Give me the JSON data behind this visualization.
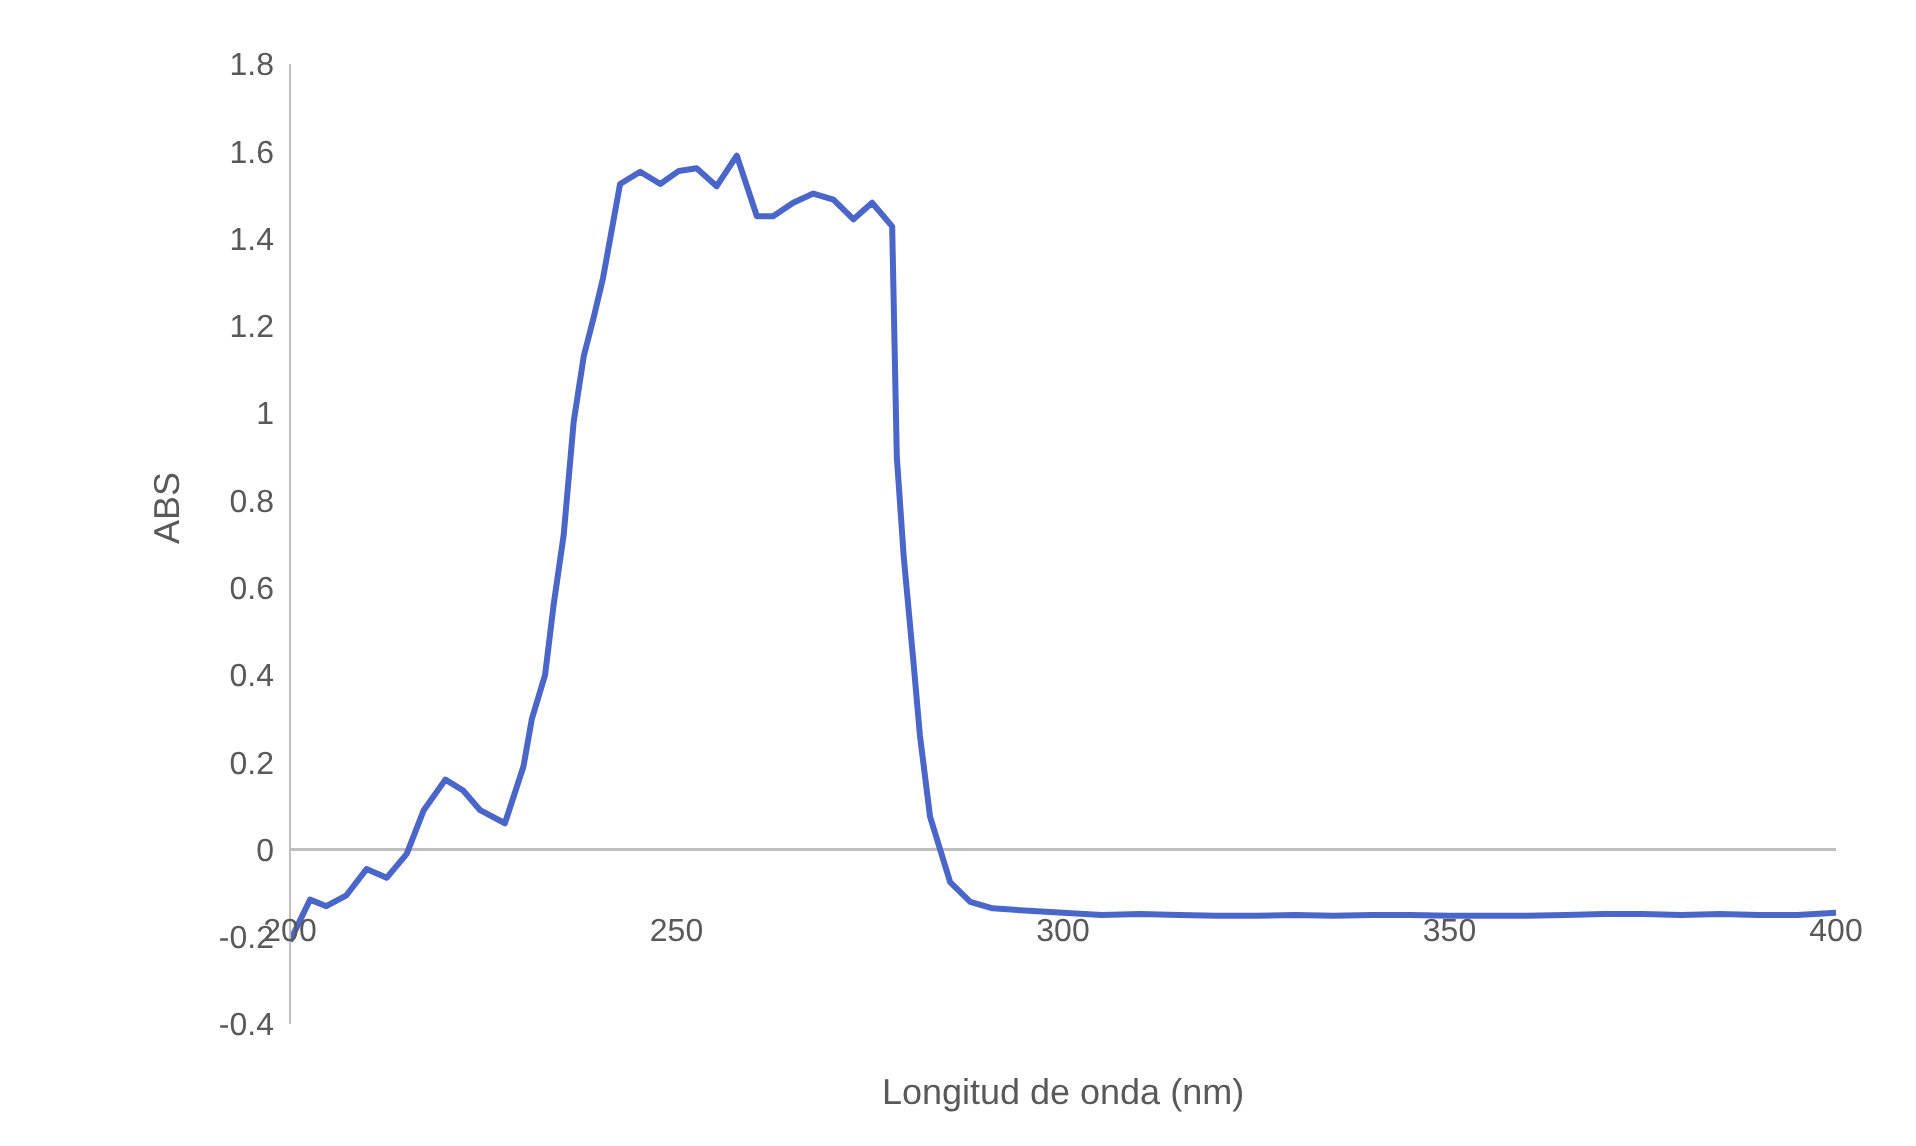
{
  "chart_data": {
    "type": "line",
    "xlabel": "Longitud de onda (nm)",
    "ylabel": "ABS",
    "xlim": [
      200,
      400
    ],
    "xticks": [
      200,
      250,
      300,
      350,
      400
    ],
    "ylim": [
      -0.4,
      1.8
    ],
    "yticks": [
      -0.4,
      -0.2,
      0,
      0.2,
      0.4,
      0.6,
      0.8,
      1,
      1.2,
      1.4,
      1.6,
      1.8
    ],
    "grid": false,
    "legend": false,
    "marker": "none",
    "line_style": "solid",
    "x": [
      200,
      202.6,
      204.7,
      207.3,
      209.9,
      212.5,
      215.1,
      217.3,
      220.1,
      222.4,
      224.6,
      227.8,
      230.2,
      231.3,
      233,
      234.1,
      235.4,
      236.7,
      238,
      239.3,
      240.5,
      242.7,
      245.3,
      247.9,
      250.3,
      252.6,
      255.2,
      257.8,
      260.4,
      262.5,
      265.1,
      267.7,
      270.3,
      272.9,
      275.3,
      277.9,
      278.5,
      279.4,
      280.6,
      281.5,
      282.8,
      285.4,
      288,
      290.9,
      295,
      300,
      305,
      310,
      315,
      320,
      325,
      330,
      335,
      340,
      345,
      350,
      355,
      360,
      365,
      370,
      375,
      380,
      385,
      390,
      395,
      400
    ],
    "series": [
      {
        "color": "#4a66c8",
        "values": [
          -0.21,
          -0.115,
          -0.13,
          -0.105,
          -0.045,
          -0.065,
          -0.01,
          0.09,
          0.16,
          0.135,
          0.09,
          0.06,
          0.19,
          0.3,
          0.4,
          0.56,
          0.72,
          0.98,
          1.13,
          1.22,
          1.31,
          1.525,
          1.553,
          1.525,
          1.555,
          1.561,
          1.52,
          1.59,
          1.451,
          1.451,
          1.482,
          1.503,
          1.489,
          1.444,
          1.482,
          1.428,
          0.9,
          0.67,
          0.44,
          0.26,
          0.075,
          -0.075,
          -0.12,
          -0.135,
          -0.14,
          -0.145,
          -0.15,
          -0.148,
          -0.15,
          -0.152,
          -0.152,
          -0.15,
          -0.152,
          -0.15,
          -0.15,
          -0.152,
          -0.152,
          -0.152,
          -0.15,
          -0.148,
          -0.148,
          -0.15,
          -0.148,
          -0.15,
          -0.15,
          -0.145
        ]
      }
    ]
  }
}
